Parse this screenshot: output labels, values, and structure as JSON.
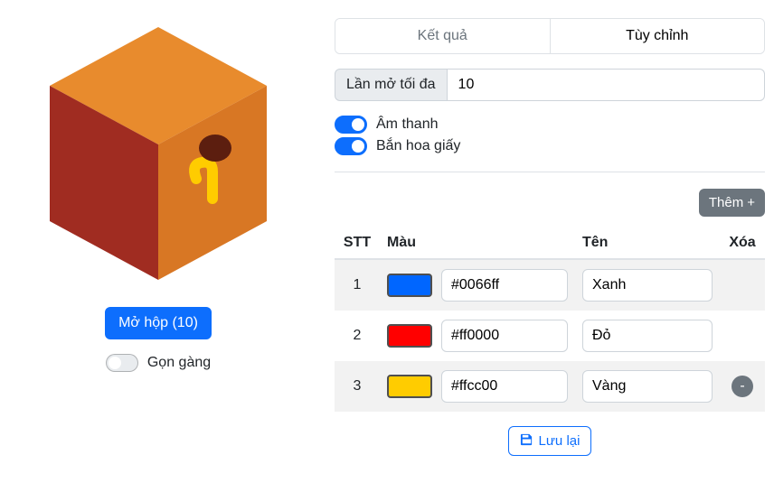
{
  "colors": {
    "primary": "#0d6efd",
    "secondary": "#6c757d",
    "row_alt_bg": "#f2f2f2",
    "border": "#dee2e6",
    "input_border": "#ced4da",
    "addon_bg": "#e9ecef",
    "box_top": "#e88b2d",
    "box_front": "#d87724",
    "box_side": "#a02c21",
    "handle_dark": "#5c1e0f",
    "handle_stem": "#ffcc00"
  },
  "left": {
    "open_button_label": "Mở hộp (10)",
    "tidy_label": "Gọn gàng",
    "tidy_enabled": false
  },
  "tabs": {
    "results_label": "Kết quả",
    "custom_label": "Tùy chỉnh",
    "active_index": 1
  },
  "settings": {
    "max_open_label": "Lần mở tối đa",
    "max_open_value": "10",
    "sound_label": "Âm thanh",
    "sound_enabled": true,
    "confetti_label": "Bắn hoa giấy",
    "confetti_enabled": true
  },
  "table": {
    "add_label": "Thêm",
    "headers": {
      "stt": "STT",
      "mau": "Màu",
      "ten": "Tên",
      "xoa": "Xóa"
    },
    "rows": [
      {
        "idx": "1",
        "color": "#0066ff",
        "hex": "#0066ff",
        "name": "Xanh"
      },
      {
        "idx": "2",
        "color": "#ff0000",
        "hex": "#ff0000",
        "name": "Đỏ"
      },
      {
        "idx": "3",
        "color": "#ffcc00",
        "hex": "#ffcc00",
        "name": "Vàng"
      }
    ],
    "save_label": "Lưu lại"
  }
}
